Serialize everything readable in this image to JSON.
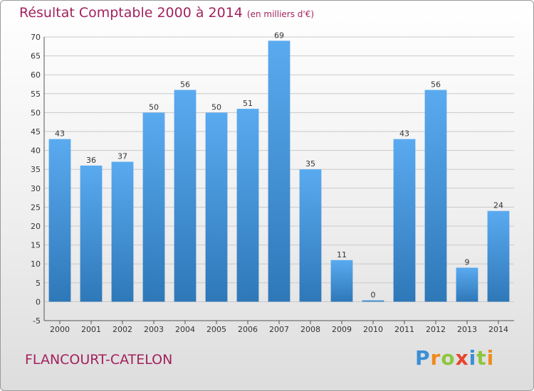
{
  "chart_data": {
    "type": "bar",
    "title": "Résultat Comptable 2000 à 2014",
    "subtitle": "(en milliers d'€)",
    "categories": [
      "2000",
      "2001",
      "2002",
      "2003",
      "2004",
      "2005",
      "2006",
      "2007",
      "2008",
      "2009",
      "2010",
      "2011",
      "2012",
      "2013",
      "2014"
    ],
    "values": [
      43,
      36,
      37,
      50,
      56,
      50,
      51,
      69,
      35,
      11,
      0,
      43,
      56,
      9,
      24
    ],
    "ylim": [
      -5,
      70
    ],
    "yticks": [
      -5,
      0,
      5,
      10,
      15,
      20,
      25,
      30,
      35,
      40,
      45,
      50,
      55,
      60,
      65,
      70
    ],
    "grid": true,
    "bar_color": "#4f9fdf"
  },
  "footer": {
    "commune": "FLANCOURT-CATELON",
    "logo_letters": [
      {
        "ch": "P",
        "color": "#3a8fd6"
      },
      {
        "ch": "r",
        "color": "#f08a1c"
      },
      {
        "ch": "o",
        "color": "#8cc63f"
      },
      {
        "ch": "x",
        "color": "#e8432e"
      },
      {
        "ch": "i",
        "color": "#3a8fd6"
      },
      {
        "ch": "t",
        "color": "#8cc63f"
      },
      {
        "ch": "i",
        "color": "#f08a1c"
      }
    ]
  }
}
